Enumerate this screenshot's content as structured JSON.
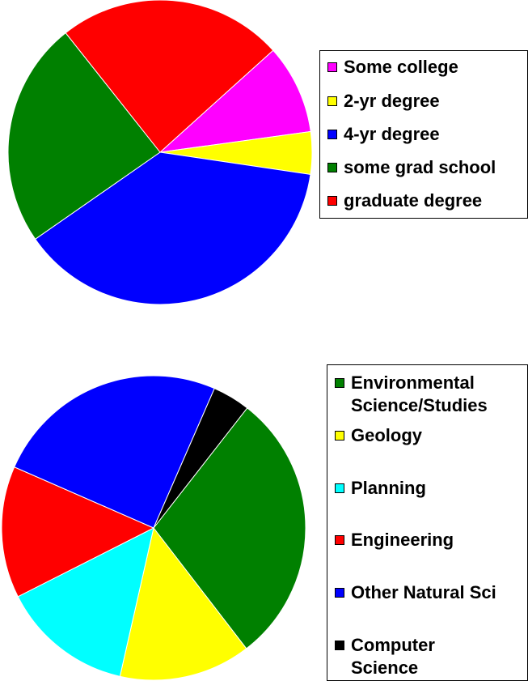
{
  "chart_data": [
    {
      "type": "pie",
      "title": "",
      "slices": [
        {
          "label": "Some college",
          "value": 9.5,
          "color": "#ff00ff"
        },
        {
          "label": "2-yr degree",
          "value": 4.5,
          "color": "#ffff00"
        },
        {
          "label": "4-yr degree",
          "value": 38.0,
          "color": "#0000ff"
        },
        {
          "label": "some grad school",
          "value": 24.0,
          "color": "#008000"
        },
        {
          "label": "graduate degree",
          "value": 24.0,
          "color": "#ff0000"
        }
      ],
      "legend_position": "right"
    },
    {
      "type": "pie",
      "title": "",
      "slices": [
        {
          "label": "Environmental Science/Studies",
          "value": 29.0,
          "color": "#008000"
        },
        {
          "label": "Geology",
          "value": 14.0,
          "color": "#ffff00"
        },
        {
          "label": "Planning",
          "value": 14.0,
          "color": "#00ffff"
        },
        {
          "label": "Engineering",
          "value": 14.0,
          "color": "#ff0000"
        },
        {
          "label": "Other Natural Sci",
          "value": 25.0,
          "color": "#0000ff"
        },
        {
          "label": "Computer Science",
          "value": 4.0,
          "color": "#000000"
        }
      ],
      "legend_position": "right"
    }
  ]
}
